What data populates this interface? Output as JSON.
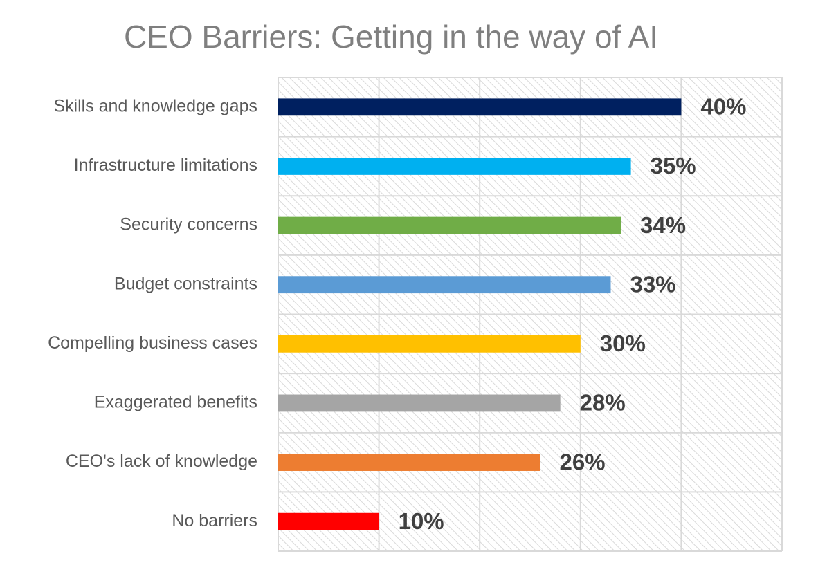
{
  "chart_data": {
    "type": "bar",
    "orientation": "horizontal",
    "title": "CEO Barriers: Getting in the way of AI",
    "xlabel": "",
    "ylabel": "",
    "xlim": [
      0,
      50
    ],
    "grid": true,
    "legend": "none",
    "categories": [
      "Skills and knowledge gaps",
      "Infrastructure limitations",
      "Security concerns",
      "Budget constraints",
      "Compelling business cases",
      "Exaggerated benefits",
      "CEO's lack of knowledge",
      "No barriers"
    ],
    "values": [
      40,
      35,
      34,
      33,
      30,
      28,
      26,
      10
    ],
    "data_labels": [
      "40%",
      "35%",
      "34%",
      "33%",
      "30%",
      "28%",
      "26%",
      "10%"
    ],
    "colors": [
      "#002060",
      "#00b0f0",
      "#70ad47",
      "#5b9bd5",
      "#ffc000",
      "#a5a5a5",
      "#ed7d31",
      "#ff0000"
    ]
  }
}
